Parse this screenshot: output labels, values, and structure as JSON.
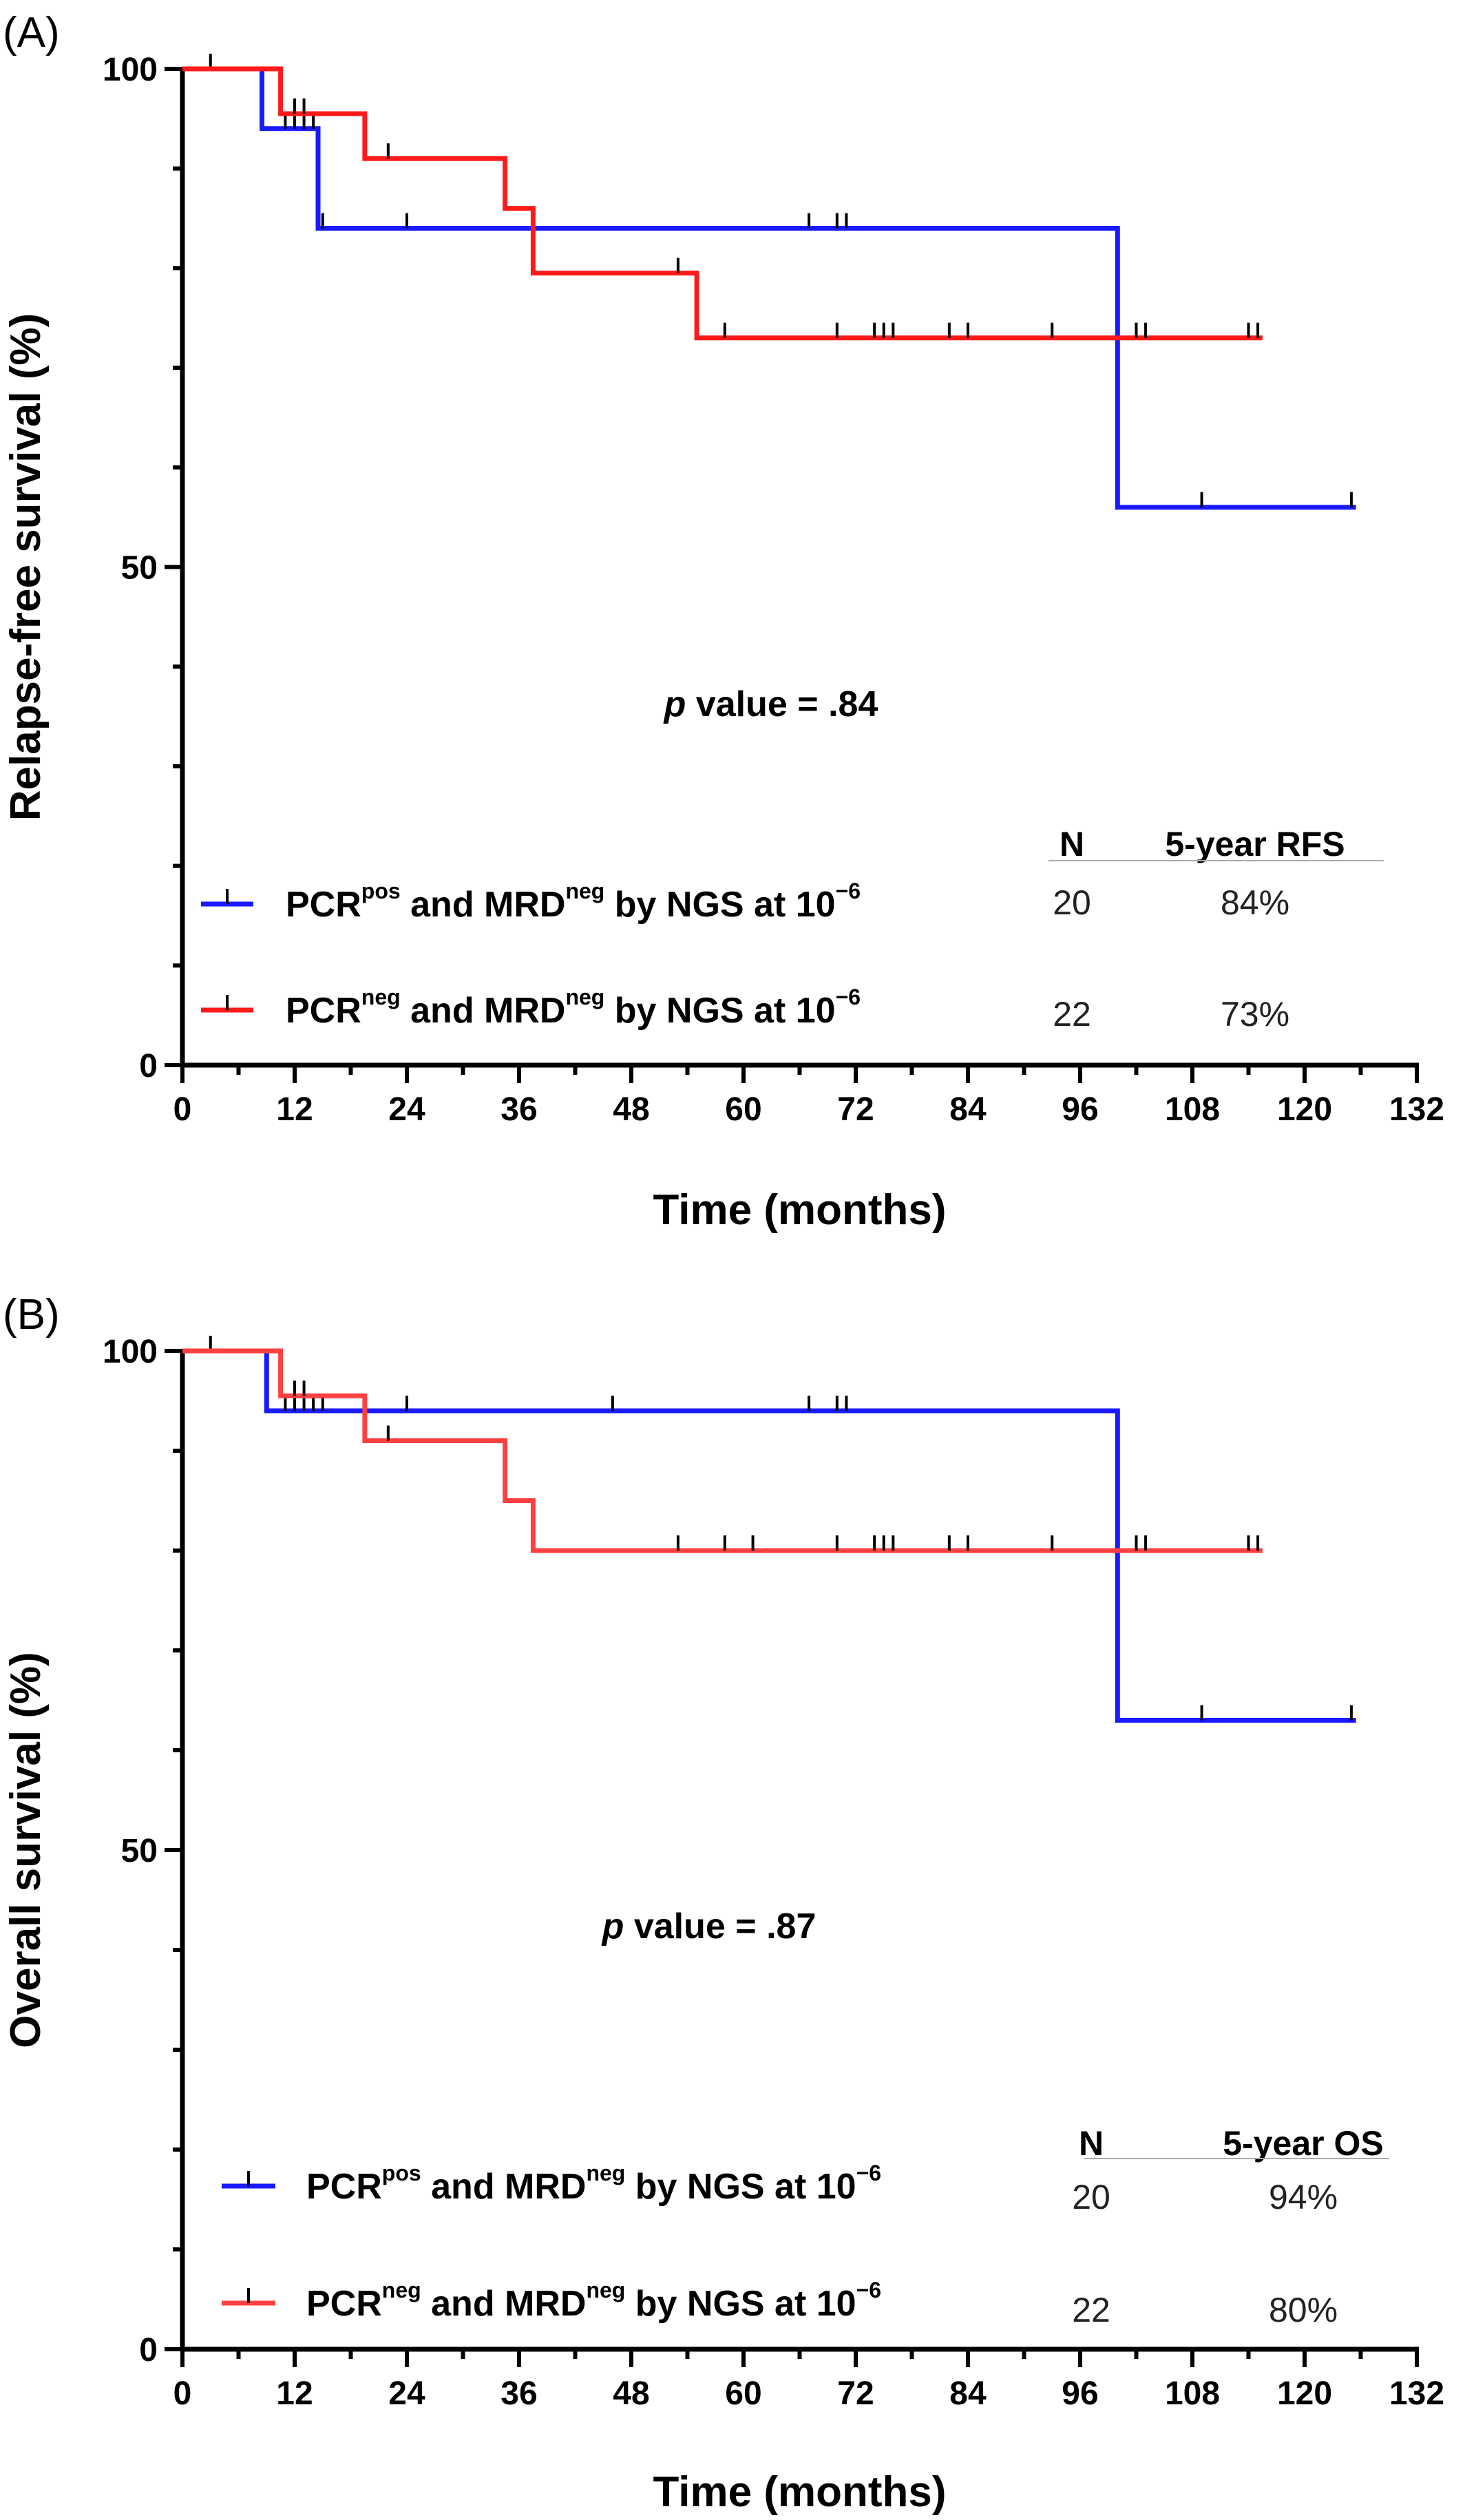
{
  "chart_data": [
    {
      "panel": "(A)",
      "type": "line",
      "step": true,
      "ylabel": "Relapse-free survival (%)",
      "xlabel": "Time (months)",
      "xlim": [
        0,
        132
      ],
      "ylim": [
        0,
        100
      ],
      "xticks": [
        0,
        12,
        24,
        36,
        48,
        60,
        72,
        84,
        96,
        108,
        120,
        132
      ],
      "yticks": [
        0,
        50,
        100
      ],
      "annotation": {
        "p_italic": "p",
        "p_rest": " value = .84"
      },
      "table_headers": {
        "n": "N",
        "rate": "5-year RFS"
      },
      "series": [
        {
          "label_parts": [
            "PCR",
            "pos",
            " and MRD",
            "neg",
            " by NGS at 10",
            "−6"
          ],
          "color": "#1a1aff",
          "n": "20",
          "rate": "84%",
          "x": [
            0,
            8.5,
            8.5,
            14.5,
            14.5,
            100,
            100,
            125.5
          ],
          "y": [
            100,
            100,
            94,
            94,
            84,
            84,
            56,
            56
          ],
          "censor_x": [
            3,
            11,
            12,
            13,
            14,
            15,
            24,
            67,
            70,
            71,
            109,
            125
          ]
        },
        {
          "label_parts": [
            "PCR",
            "neg",
            " and MRD",
            "neg",
            " by NGS at 10",
            "−6"
          ],
          "color": "#ff1a1a",
          "n": "22",
          "rate": "73%",
          "x": [
            0,
            10.5,
            10.5,
            19.5,
            19.5,
            34.5,
            34.5,
            37.5,
            37.5,
            55,
            55,
            115.5
          ],
          "y": [
            100,
            100,
            95.5,
            95.5,
            91,
            91,
            86,
            86,
            79.5,
            79.5,
            73,
            73
          ],
          "censor_x": [
            12,
            13,
            22,
            53,
            58,
            70,
            74,
            75,
            76,
            82,
            84,
            93,
            102,
            103,
            114,
            115
          ]
        }
      ]
    },
    {
      "panel": "(B)",
      "type": "line",
      "step": true,
      "ylabel": "Overall survival (%)",
      "xlabel": "Time (months)",
      "xlim": [
        0,
        132
      ],
      "ylim": [
        0,
        100
      ],
      "xticks": [
        0,
        12,
        24,
        36,
        48,
        60,
        72,
        84,
        96,
        108,
        120,
        132
      ],
      "yticks": [
        0,
        50,
        100
      ],
      "annotation": {
        "p_italic": "p",
        "p_rest": " value = .87"
      },
      "table_headers": {
        "n": "N",
        "rate": "5-year OS"
      },
      "series": [
        {
          "label_parts": [
            "PCR",
            "pos",
            " and MRD",
            "neg",
            " by NGS at 10",
            "−6"
          ],
          "color": "#1a1aff",
          "n": "20",
          "rate": "94%",
          "x": [
            0,
            9,
            9,
            100,
            100,
            125.5
          ],
          "y": [
            100,
            100,
            94,
            94,
            63,
            63
          ],
          "censor_x": [
            3,
            11,
            12,
            13,
            14,
            15,
            24,
            46,
            67,
            70,
            71,
            109,
            125
          ]
        },
        {
          "label_parts": [
            "PCR",
            "neg",
            " and MRD",
            "neg",
            " by NGS at 10",
            "−6"
          ],
          "color": "#ff4040",
          "n": "22",
          "rate": "80%",
          "x": [
            0,
            10.5,
            10.5,
            19.5,
            19.5,
            34.5,
            34.5,
            37.5,
            37.5,
            115.5
          ],
          "y": [
            100,
            100,
            95.5,
            95.5,
            91,
            91,
            85,
            85,
            80,
            80
          ],
          "censor_x": [
            12,
            13,
            22,
            53,
            58,
            61,
            70,
            74,
            75,
            76,
            82,
            84,
            93,
            102,
            103,
            114,
            115
          ]
        }
      ]
    }
  ]
}
